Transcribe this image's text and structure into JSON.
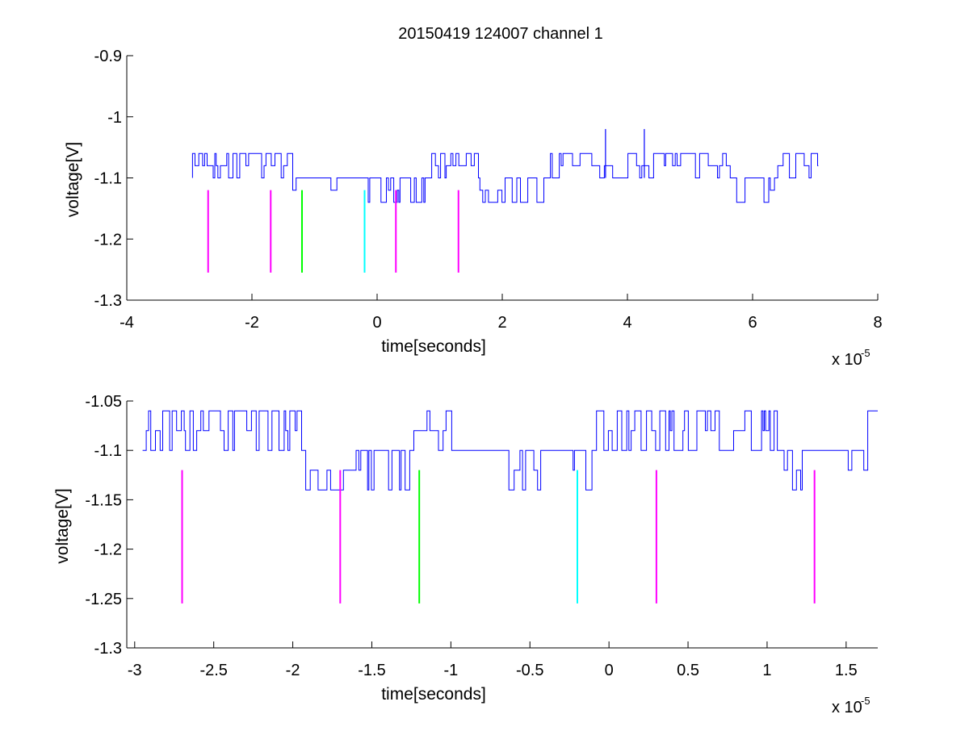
{
  "figure": {
    "title": "20150419 124007 channel 1"
  },
  "chart_data": [
    {
      "type": "line",
      "title": "20150419 124007 channel 1",
      "xlabel": "time[seconds]",
      "ylabel": "voltage[V]",
      "x_multiplier": "x 10",
      "x_exponent": "-5",
      "xlim": [
        -4,
        8
      ],
      "ylim": [
        -1.3,
        -0.9
      ],
      "xticks": [
        -4,
        -2,
        0,
        2,
        4,
        6,
        8
      ],
      "xticklabels": [
        "-4",
        "-2",
        "0",
        "2",
        "4",
        "6",
        "8"
      ],
      "yticks": [
        -1.3,
        -1.2,
        -1.1,
        -1.0,
        -0.9
      ],
      "yticklabels": [
        "-1.3",
        "-1.2",
        "-1.1",
        "-1",
        "-0.9"
      ],
      "grid": false,
      "signal": {
        "color": "#0000ff",
        "x_range": [
          -2.95,
          7.05
        ],
        "baseline": -1.1,
        "levels": [
          -1.06,
          -1.08,
          -1.1,
          -1.12,
          -1.14
        ],
        "spikes": [
          {
            "x": 3.65,
            "y": -1.02
          },
          {
            "x": 4.27,
            "y": -1.02
          }
        ]
      },
      "markers": [
        {
          "x": -2.7,
          "y_top": -1.12,
          "y_bottom": -1.255,
          "color": "#ff00ff"
        },
        {
          "x": -1.7,
          "y_top": -1.12,
          "y_bottom": -1.255,
          "color": "#ff00ff"
        },
        {
          "x": -1.2,
          "y_top": -1.12,
          "y_bottom": -1.255,
          "color": "#00ff00"
        },
        {
          "x": -0.2,
          "y_top": -1.12,
          "y_bottom": -1.255,
          "color": "#00ffff"
        },
        {
          "x": 0.3,
          "y_top": -1.12,
          "y_bottom": -1.255,
          "color": "#ff00ff"
        },
        {
          "x": 1.3,
          "y_top": -1.12,
          "y_bottom": -1.255,
          "color": "#ff00ff"
        }
      ]
    },
    {
      "type": "line",
      "title": "",
      "xlabel": "time[seconds]",
      "ylabel": "voltage[V]",
      "x_multiplier": "x 10",
      "x_exponent": "-5",
      "xlim": [
        -3.05,
        1.7
      ],
      "ylim": [
        -1.3,
        -1.05
      ],
      "xticks": [
        -3,
        -2.5,
        -2,
        -1.5,
        -1,
        -0.5,
        0,
        0.5,
        1,
        1.5
      ],
      "xticklabels": [
        "-3",
        "-2.5",
        "-2",
        "-1.5",
        "-1",
        "-0.5",
        "0",
        "0.5",
        "1",
        "1.5"
      ],
      "yticks": [
        -1.3,
        -1.25,
        -1.2,
        -1.15,
        -1.1,
        -1.05
      ],
      "yticklabels": [
        "-1.3",
        "-1.25",
        "-1.2",
        "-1.15",
        "-1.1",
        "-1.05"
      ],
      "grid": false,
      "signal": {
        "color": "#0000ff",
        "x_range": [
          -2.95,
          1.7
        ],
        "baseline": -1.1,
        "levels": [
          -1.06,
          -1.08,
          -1.1,
          -1.12,
          -1.14
        ],
        "spikes": []
      },
      "markers": [
        {
          "x": -2.7,
          "y_top": -1.12,
          "y_bottom": -1.255,
          "color": "#ff00ff"
        },
        {
          "x": -1.7,
          "y_top": -1.12,
          "y_bottom": -1.255,
          "color": "#ff00ff"
        },
        {
          "x": -1.2,
          "y_top": -1.12,
          "y_bottom": -1.255,
          "color": "#00ff00"
        },
        {
          "x": -0.2,
          "y_top": -1.12,
          "y_bottom": -1.255,
          "color": "#00ffff"
        },
        {
          "x": 0.3,
          "y_top": -1.12,
          "y_bottom": -1.255,
          "color": "#ff00ff"
        },
        {
          "x": 1.3,
          "y_top": -1.12,
          "y_bottom": -1.255,
          "color": "#ff00ff"
        }
      ]
    }
  ]
}
